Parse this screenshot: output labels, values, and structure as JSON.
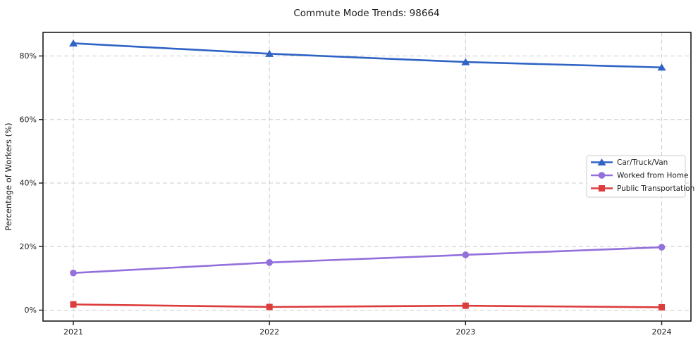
{
  "title": "Commute Mode Trends: 98664",
  "chart_data": {
    "type": "line",
    "x": [
      2021,
      2022,
      2023,
      2024
    ],
    "x_tick_labels": [
      "2021",
      "2022",
      "2023",
      "2024"
    ],
    "series": [
      {
        "name": "Car/Truck/Van",
        "marker": "triangle",
        "color": "#2f63c4",
        "values": [
          84.0,
          80.7,
          78.1,
          76.4
        ]
      },
      {
        "name": "Worked from Home",
        "marker": "circle",
        "color": "#9370db",
        "values": [
          11.7,
          15.0,
          17.4,
          19.8
        ]
      },
      {
        "name": "Public Transportation",
        "marker": "square",
        "color": "#dc3c3c",
        "values": [
          1.8,
          1.0,
          1.4,
          0.9
        ]
      }
    ],
    "xlabel": "",
    "ylabel": "Percentage of Workers (%)",
    "yticks": [
      0,
      20,
      40,
      60,
      80
    ],
    "ytick_labels": [
      "0%",
      "20%",
      "40%",
      "60%",
      "80%"
    ],
    "ylim": [
      -3.5,
      87.5
    ],
    "grid": true,
    "grid_style": "dashed",
    "legend_position": "center right",
    "colors": {
      "background": "#ffffff",
      "grid": "#cccccc",
      "spine": "#1a1a1a",
      "text": "#1c1c1c",
      "legend_border": "#cccccc"
    }
  }
}
